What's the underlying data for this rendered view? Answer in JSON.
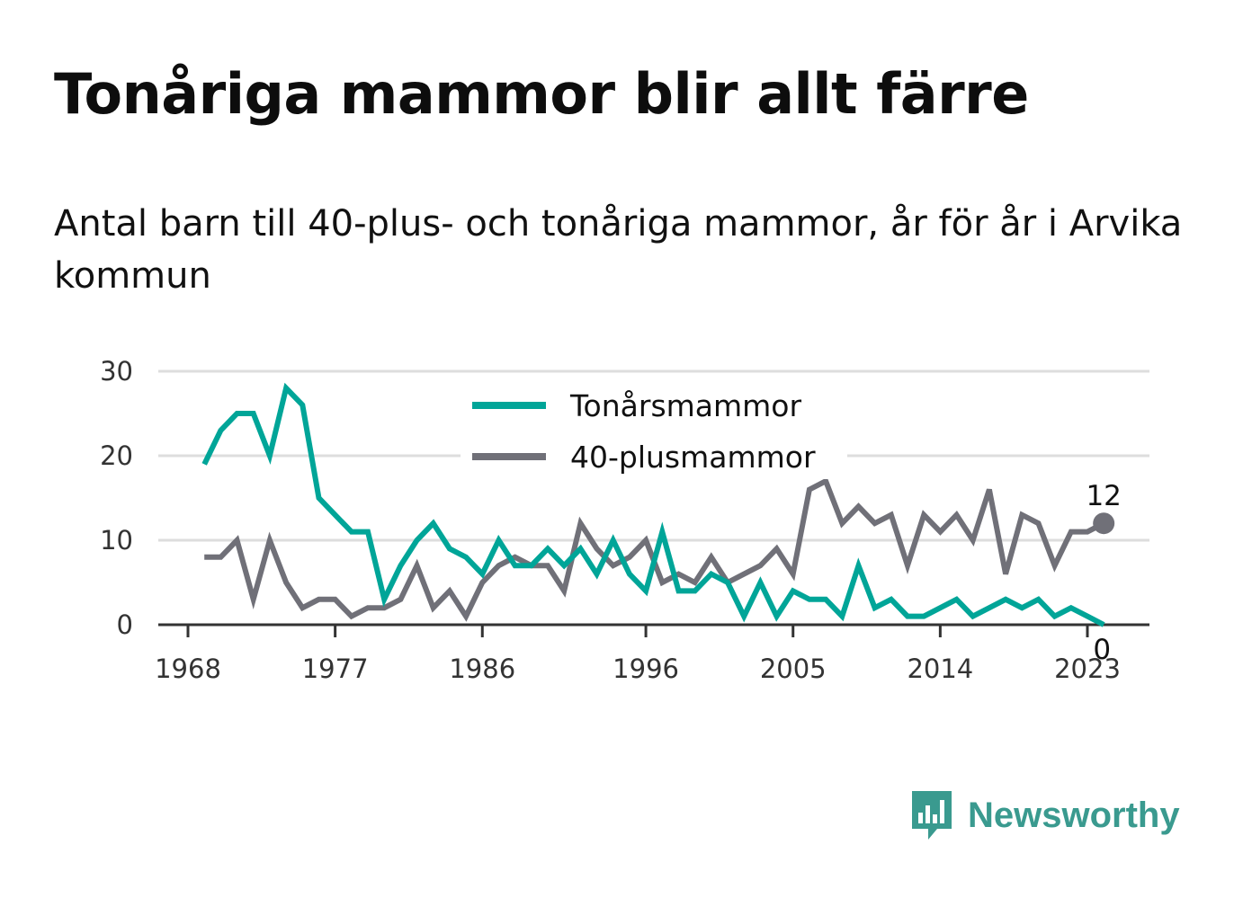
{
  "title": "Tonåriga mammor blir allt färre",
  "subtitle": "Antal barn till 40-plus- och tonåriga mammor, år för år i Arvika kommun",
  "brand": "Newsworthy",
  "colors": {
    "teen": "#00a598",
    "forty": "#707078",
    "grid": "#dddddd",
    "brand": "#3a9a8f"
  },
  "chart_data": {
    "type": "line",
    "x": [
      1969,
      1970,
      1971,
      1972,
      1973,
      1974,
      1975,
      1976,
      1977,
      1978,
      1979,
      1980,
      1981,
      1982,
      1983,
      1984,
      1985,
      1986,
      1987,
      1988,
      1989,
      1990,
      1991,
      1992,
      1993,
      1994,
      1995,
      1996,
      1997,
      1998,
      1999,
      2000,
      2001,
      2002,
      2003,
      2004,
      2005,
      2006,
      2007,
      2008,
      2009,
      2010,
      2011,
      2012,
      2013,
      2014,
      2015,
      2016,
      2017,
      2018,
      2019,
      2020,
      2021,
      2022,
      2023,
      2024
    ],
    "series": [
      {
        "name": "Tonårsmammor",
        "values": [
          19,
          23,
          25,
          25,
          20,
          28,
          26,
          15,
          13,
          11,
          11,
          3,
          7,
          10,
          12,
          9,
          8,
          6,
          10,
          7,
          7,
          9,
          7,
          9,
          6,
          10,
          6,
          4,
          11,
          4,
          4,
          6,
          5,
          1,
          5,
          1,
          4,
          3,
          3,
          1,
          7,
          2,
          3,
          1,
          1,
          2,
          3,
          1,
          2,
          3,
          2,
          3,
          1,
          2,
          1,
          0
        ]
      },
      {
        "name": "40-plusmammor",
        "values": [
          8,
          8,
          10,
          3,
          10,
          5,
          2,
          3,
          3,
          1,
          2,
          2,
          3,
          7,
          2,
          4,
          1,
          5,
          7,
          8,
          7,
          7,
          4,
          12,
          9,
          7,
          8,
          10,
          5,
          6,
          5,
          8,
          5,
          6,
          7,
          9,
          6,
          16,
          17,
          12,
          14,
          12,
          13,
          7,
          13,
          11,
          13,
          10,
          16,
          6,
          13,
          12,
          7,
          11,
          11,
          12
        ]
      }
    ],
    "x_ticks": [
      "1968",
      "1977",
      "1986",
      "1996",
      "2005",
      "2014",
      "2023"
    ],
    "y_ticks": [
      "0",
      "10",
      "20",
      "30"
    ],
    "ylim": [
      0,
      30
    ],
    "end_labels": [
      "12",
      "0"
    ],
    "legend_position": "top-center",
    "grid": true
  }
}
